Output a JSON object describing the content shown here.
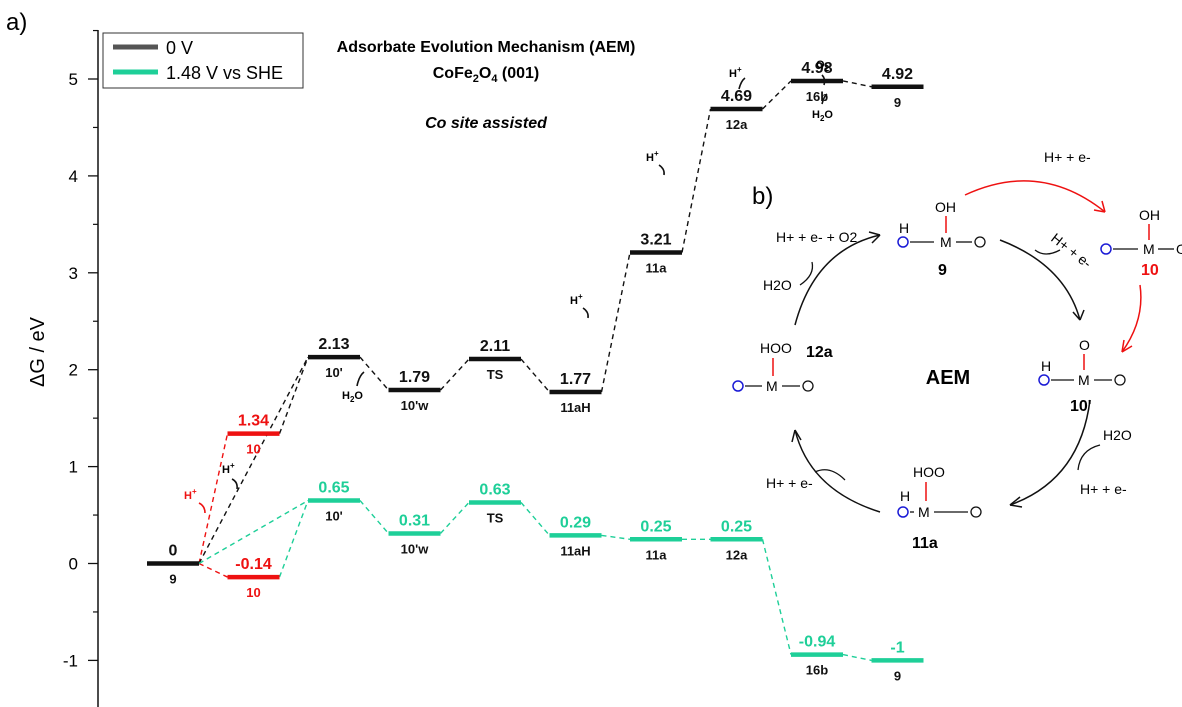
{
  "colors": {
    "s0": "#111111",
    "s1": "#1ecf98",
    "red": "#ee1111",
    "blue": "#1b1bd6"
  },
  "panel_a": {
    "label": "a)"
  },
  "panel_b": {
    "label": "b)"
  },
  "header": {
    "title": "Adsorbate Evolution Mechanism (AEM)",
    "subtitle_main": "CoFe",
    "subtitle_sub": "2",
    "subtitle_main2": "O",
    "subtitle_sub2": "4",
    "subtitle_tail": " (001)",
    "note": "Co site assisted"
  },
  "chart_data": {
    "type": "line",
    "ylabel": "ΔG / eV",
    "ylim": [
      -1.25,
      5.5
    ],
    "yticks": [
      -1,
      0,
      1,
      2,
      3,
      4,
      5
    ],
    "legend": {
      "placement": "top-left",
      "entries": [
        "0 V",
        "1.48 V vs SHE"
      ]
    },
    "series": [
      {
        "name": "0 V",
        "color": "#111111",
        "levels": [
          {
            "x": 0,
            "label": "9",
            "value": 0,
            "text": "0"
          },
          {
            "x": 1,
            "label": "10",
            "value": 1.34,
            "text": "1.34",
            "color": "#ee1111"
          },
          {
            "x": 2,
            "label": "10'",
            "value": 2.13,
            "text": "2.13"
          },
          {
            "x": 3,
            "label": "10'w",
            "value": 1.79,
            "text": "1.79"
          },
          {
            "x": 4,
            "label": "TS",
            "value": 2.11,
            "text": "2.11"
          },
          {
            "x": 5,
            "label": "11aH",
            "value": 1.77,
            "text": "1.77"
          },
          {
            "x": 6,
            "label": "11a",
            "value": 3.21,
            "text": "3.21"
          },
          {
            "x": 7,
            "label": "12a",
            "value": 4.69,
            "text": "4.69"
          },
          {
            "x": 8,
            "label": "16b",
            "value": 4.98,
            "text": "4.98"
          },
          {
            "x": 9,
            "label": "9",
            "value": 4.92,
            "text": "4.92"
          }
        ]
      },
      {
        "name": "1.48 V vs SHE",
        "color": "#1ecf98",
        "levels": [
          {
            "x": 1,
            "label": "10",
            "value": -0.14,
            "text": "-0.14",
            "color": "#ee1111"
          },
          {
            "x": 2,
            "label": "10'",
            "value": 0.65,
            "text": "0.65"
          },
          {
            "x": 3,
            "label": "10'w",
            "value": 0.31,
            "text": "0.31"
          },
          {
            "x": 4,
            "label": "TS",
            "value": 0.63,
            "text": "0.63"
          },
          {
            "x": 5,
            "label": "11aH",
            "value": 0.29,
            "text": "0.29"
          },
          {
            "x": 6,
            "label": "11a",
            "value": 0.25,
            "text": "0.25"
          },
          {
            "x": 7,
            "label": "12a",
            "value": 0.25,
            "text": "0.25"
          },
          {
            "x": 8,
            "label": "16b",
            "value": -0.94,
            "text": "-0.94"
          },
          {
            "x": 9,
            "label": "9",
            "value": -1,
            "text": "-1"
          }
        ]
      }
    ],
    "annotations": [
      "H+",
      "H+",
      "H2O",
      "H+",
      "H+",
      "H+",
      "O2",
      "H2O",
      "H+"
    ]
  },
  "cycle": {
    "center": "AEM",
    "states": [
      {
        "id": "9",
        "top": "OH",
        "mid": "O—M—O",
        "h": "H"
      },
      {
        "id": "10",
        "top": "OH",
        "mid": "O—M—O"
      },
      {
        "id": "10'",
        "top": "O",
        "mid": "O—M—O",
        "h": "H"
      },
      {
        "id": "11a",
        "top": "HOO",
        "mid": "O—M—O",
        "h": "H"
      },
      {
        "id": "12a",
        "top": "HOO",
        "mid": "O—M—O"
      }
    ],
    "steps": {
      "s9_10": "H+ + e-",
      "s9_10p": "H+ + e-",
      "s10p_in": "H2O",
      "s10p_out": "H+ + e-",
      "s11_12": "H+ + e-",
      "s12_in": "H2O",
      "s12_out": "H+ + e- + O2"
    }
  }
}
